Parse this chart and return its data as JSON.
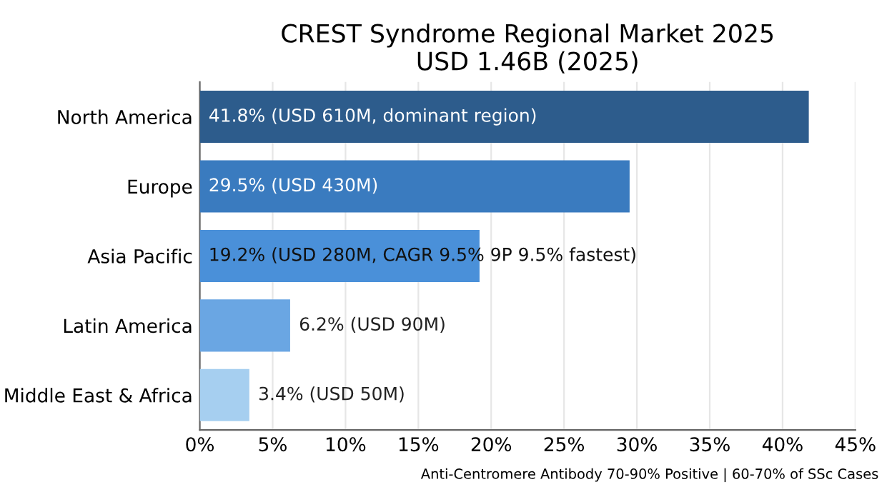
{
  "chart_data": {
    "type": "bar",
    "orientation": "horizontal",
    "title": "CREST Syndrome Regional Market 2025\nUSD 1.46B (2025)",
    "categories": [
      "North America",
      "Europe",
      "Asia Pacific",
      "Latin America",
      "Middle East & Africa"
    ],
    "values": [
      41.8,
      29.5,
      19.2,
      6.2,
      3.4
    ],
    "colors": [
      "#2d5c8c",
      "#3a7bbf",
      "#4a90d9",
      "#6aa6e3",
      "#a6cff0"
    ],
    "value_labels": [
      "41.8% (USD 610M, dominant region)",
      "29.5% (USD 430M)",
      "19.2% (USD 280M, CAGR 9.5% 9P 9.5% fastest)",
      "6.2% (USD 90M)",
      "3.4% (USD 50M)"
    ],
    "xlim": [
      0,
      45
    ],
    "xticks": [
      {
        "value": 0,
        "label": "0%"
      },
      {
        "value": 5,
        "label": "5%"
      },
      {
        "value": 10,
        "label": "10%"
      },
      {
        "value": 15,
        "label": "15%"
      },
      {
        "value": 20,
        "label": "20%"
      },
      {
        "value": 25,
        "label": "25%"
      },
      {
        "value": 30,
        "label": "30%"
      },
      {
        "value": 35,
        "label": "35%"
      },
      {
        "value": 40,
        "label": "40%"
      },
      {
        "value": 45,
        "label": "45%"
      }
    ],
    "grid": "x",
    "legend": false,
    "annotations": [
      "Anti-Centromere Antibody 70-90% Positive | 60-70% of SSc Cases"
    ]
  }
}
